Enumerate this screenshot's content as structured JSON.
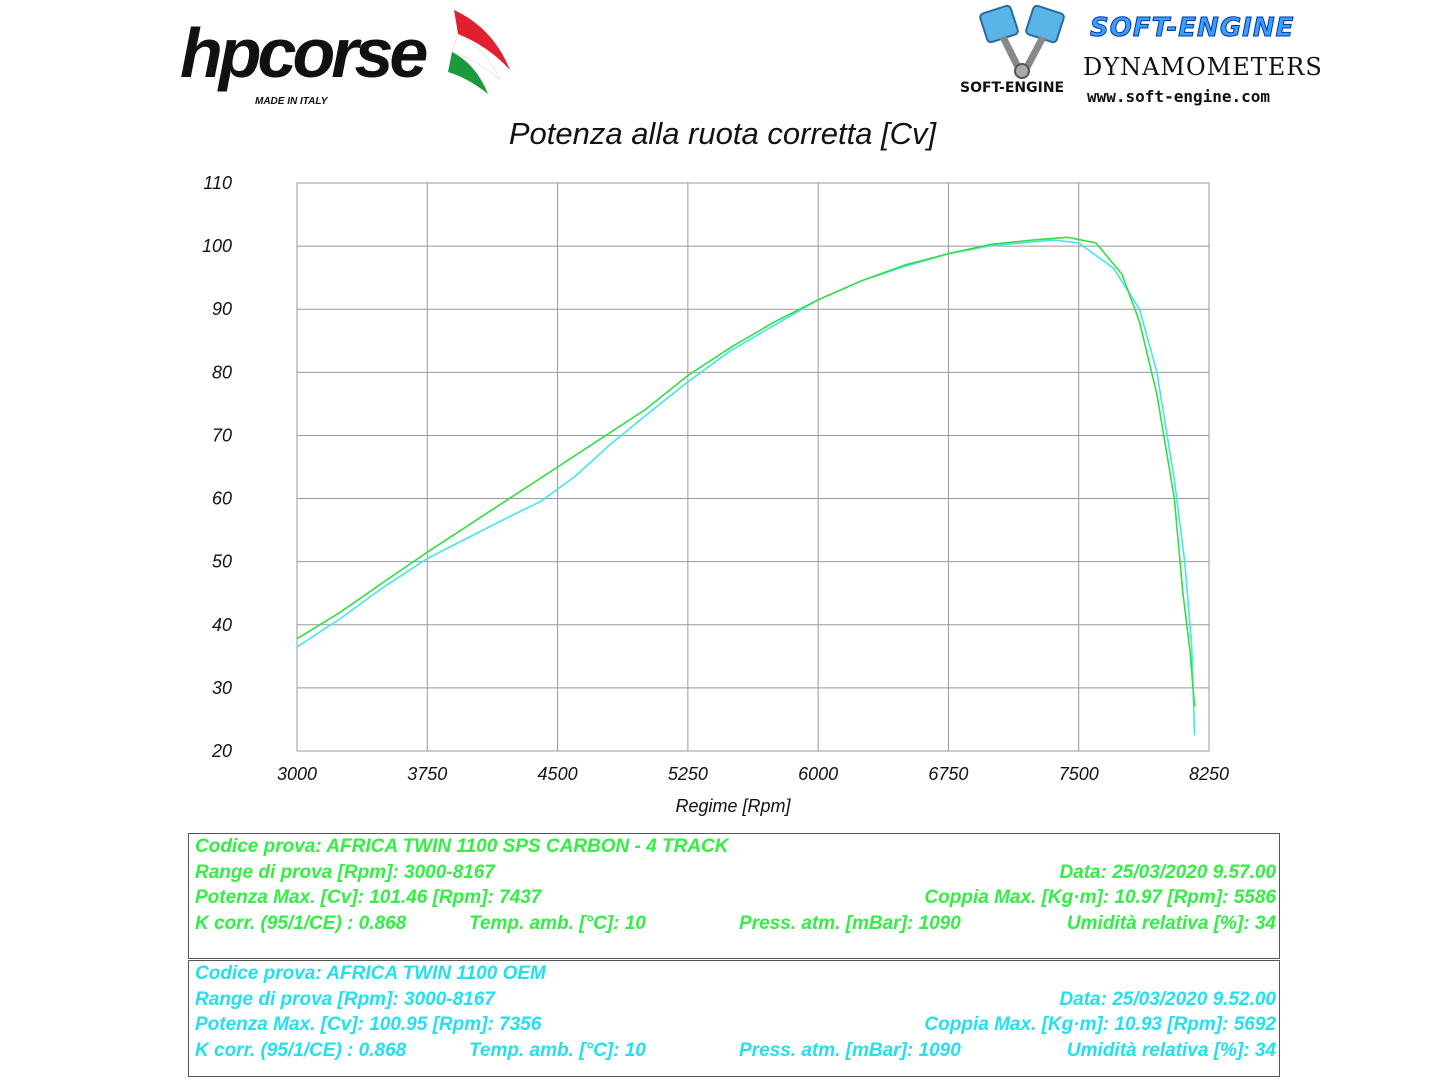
{
  "logos": {
    "left": {
      "brand": "hpcorse",
      "sub": "MADE IN ITALY"
    },
    "right": {
      "brand": "SOFT-ENGINE",
      "line1": "DYNAMOMETERS",
      "line2": "www.soft-engine.com",
      "small": "SOFT-ENGINE"
    }
  },
  "chart_data": {
    "type": "line",
    "title": "Potenza alla ruota corretta [Cv]",
    "xlabel": "Regime [Rpm]",
    "ylabel": "",
    "xlim": [
      3000,
      8250
    ],
    "ylim": [
      20,
      110
    ],
    "xticks": [
      3000,
      3750,
      4500,
      5250,
      6000,
      6750,
      7500,
      8250
    ],
    "yticks": [
      20,
      30,
      40,
      50,
      60,
      70,
      80,
      90,
      100,
      110
    ],
    "grid": true,
    "series": [
      {
        "color": "#33dd44",
        "points": [
          [
            3000,
            37.8
          ],
          [
            3250,
            42
          ],
          [
            3500,
            46.8
          ],
          [
            3750,
            51.5
          ],
          [
            4000,
            56
          ],
          [
            4250,
            60.5
          ],
          [
            4500,
            65
          ],
          [
            4750,
            69.5
          ],
          [
            5000,
            74
          ],
          [
            5250,
            79.5
          ],
          [
            5500,
            84
          ],
          [
            5750,
            88
          ],
          [
            6000,
            91.5
          ],
          [
            6250,
            94.5
          ],
          [
            6500,
            97
          ],
          [
            6750,
            98.8
          ],
          [
            7000,
            100.3
          ],
          [
            7250,
            101
          ],
          [
            7437,
            101.4
          ],
          [
            7600,
            100.5
          ],
          [
            7750,
            95.5
          ],
          [
            7850,
            88
          ],
          [
            7950,
            76.5
          ],
          [
            8050,
            60
          ],
          [
            8100,
            45
          ],
          [
            8140,
            36
          ],
          [
            8167,
            27
          ]
        ]
      },
      {
        "color": "#44e6ee",
        "points": [
          [
            3000,
            36.5
          ],
          [
            3250,
            41
          ],
          [
            3500,
            46
          ],
          [
            3750,
            50.5
          ],
          [
            4000,
            54
          ],
          [
            4250,
            57.5
          ],
          [
            4400,
            59.5
          ],
          [
            4600,
            63.5
          ],
          [
            4800,
            68.5
          ],
          [
            5000,
            73
          ],
          [
            5250,
            78.5
          ],
          [
            5500,
            83.5
          ],
          [
            5750,
            87.5
          ],
          [
            6000,
            91.5
          ],
          [
            6250,
            94.5
          ],
          [
            6500,
            96.8
          ],
          [
            6750,
            98.8
          ],
          [
            7000,
            100.1
          ],
          [
            7250,
            100.7
          ],
          [
            7356,
            100.95
          ],
          [
            7500,
            100.5
          ],
          [
            7700,
            96.5
          ],
          [
            7850,
            90
          ],
          [
            7950,
            80
          ],
          [
            8050,
            63
          ],
          [
            8110,
            50
          ],
          [
            8150,
            37
          ],
          [
            8167,
            22.5
          ]
        ]
      }
    ]
  },
  "tests": [
    {
      "color": "#33ee44",
      "rows": [
        {
          "left": "Codice prova: AFRICA TWIN 1100  SPS CARBON  -  4 TRACK"
        },
        {
          "left": "Range di prova [Rpm]: 3000-8167",
          "right": "Data: 25/03/2020  9.57.00"
        },
        {
          "left": "Potenza Max. [Cv]: 101.46   [Rpm]: 7437",
          "right": "Coppia Max. [Kg·m]: 10.97  [Rpm]: 5586"
        },
        {
          "left": "K corr. (95/1/CE) : 0.868",
          "mid1": "Temp. amb. [°C]: 10",
          "mid2": "Press. atm. [mBar]: 1090",
          "right": "Umidità relativa [%]: 34"
        }
      ]
    },
    {
      "color": "#22e0ee",
      "rows": [
        {
          "left": "Codice prova: AFRICA TWIN 1100  OEM"
        },
        {
          "left": "Range di prova [Rpm]: 3000-8167",
          "right": "Data: 25/03/2020  9.52.00"
        },
        {
          "left": "Potenza Max. [Cv]: 100.95   [Rpm]: 7356",
          "right": "Coppia Max. [Kg·m]: 10.93  [Rpm]: 5692"
        },
        {
          "left": "K corr. (95/1/CE) : 0.868",
          "mid1": "Temp. amb. [°C]: 10",
          "mid2": "Press. atm. [mBar]: 1090",
          "right": "Umidità relativa [%]: 34"
        }
      ]
    }
  ]
}
